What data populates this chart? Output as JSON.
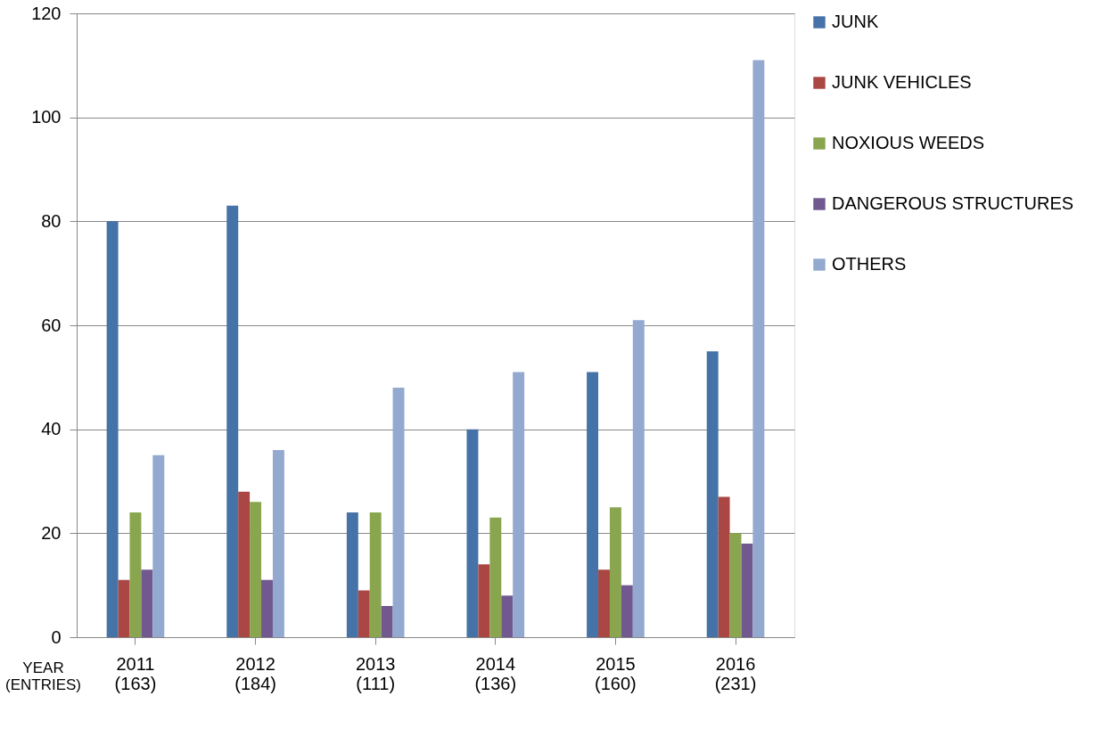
{
  "chart_data": {
    "type": "bar",
    "xlabel": "YEAR\n(ENTRIES)",
    "categories": [
      "2011\n(163)",
      "2012\n(184)",
      "2013\n(111)",
      "2014\n(136)",
      "2015\n(160)",
      "2016\n(231)"
    ],
    "series": [
      {
        "name": "JUNK",
        "color": "#4572a7",
        "values": [
          80,
          83,
          24,
          40,
          51,
          55
        ]
      },
      {
        "name": "JUNK VEHICLES",
        "color": "#aa4643",
        "values": [
          11,
          28,
          9,
          14,
          13,
          27
        ]
      },
      {
        "name": "NOXIOUS WEEDS",
        "color": "#89a54e",
        "values": [
          24,
          26,
          24,
          23,
          25,
          20
        ]
      },
      {
        "name": "DANGEROUS STRUCTURES",
        "color": "#71588f",
        "values": [
          13,
          11,
          6,
          8,
          10,
          18
        ]
      },
      {
        "name": "OTHERS",
        "color": "#93a9cf",
        "values": [
          35,
          36,
          48,
          51,
          61,
          111
        ]
      }
    ],
    "ylim": [
      0,
      120
    ],
    "yticks": [
      0,
      20,
      40,
      60,
      80,
      100,
      120
    ],
    "grid": "y",
    "legend": "right"
  }
}
